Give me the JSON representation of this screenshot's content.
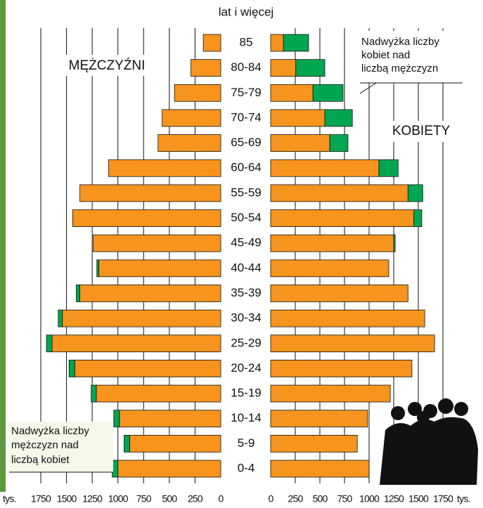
{
  "chart_data": {
    "type": "population-pyramid",
    "age_axis_label": "lat i więcej",
    "left_label": "MĘŻCZYŹNI",
    "right_label": "KOBIETY",
    "unit": "tys.",
    "categories": [
      "85",
      "80-84",
      "75-79",
      "70-74",
      "65-69",
      "60-64",
      "55-59",
      "50-54",
      "45-49",
      "40-44",
      "35-39",
      "30-34",
      "25-29",
      "20-24",
      "15-19",
      "10-14",
      "5-9",
      "0-4"
    ],
    "series": [
      {
        "side": "left",
        "color": "#f7941d",
        "values": [
          170,
          290,
          450,
          570,
          610,
          1090,
          1370,
          1440,
          1240,
          1185,
          1370,
          1540,
          1640,
          1420,
          1210,
          985,
          885,
          1000
        ]
      },
      {
        "side": "left",
        "color": "#00a651",
        "values": [
          0,
          0,
          0,
          0,
          0,
          0,
          0,
          0,
          0,
          20,
          35,
          40,
          55,
          55,
          50,
          55,
          55,
          55
        ]
      },
      {
        "side": "right",
        "color": "#f7941d",
        "values": [
          130,
          255,
          430,
          550,
          600,
          1100,
          1395,
          1455,
          1250,
          1200,
          1395,
          1565,
          1665,
          1435,
          1215,
          985,
          880,
          1000
        ]
      },
      {
        "side": "right",
        "color": "#00a651",
        "values": [
          255,
          295,
          305,
          280,
          185,
          195,
          150,
          80,
          15,
          0,
          0,
          0,
          0,
          0,
          0,
          0,
          0,
          0
        ]
      }
    ],
    "xlim": [
      0,
      1750
    ],
    "xticks": [
      0,
      250,
      500,
      750,
      1000,
      1250,
      1500,
      1750
    ],
    "grid": true,
    "annotations": [
      {
        "lines": [
          "Nadwyżka liczby",
          "kobiet nad",
          "liczbą mężczyzn"
        ]
      },
      {
        "lines": [
          "Nadwyżka liczby",
          "mężczyzn nad",
          "liczbą kobiet"
        ]
      }
    ]
  }
}
